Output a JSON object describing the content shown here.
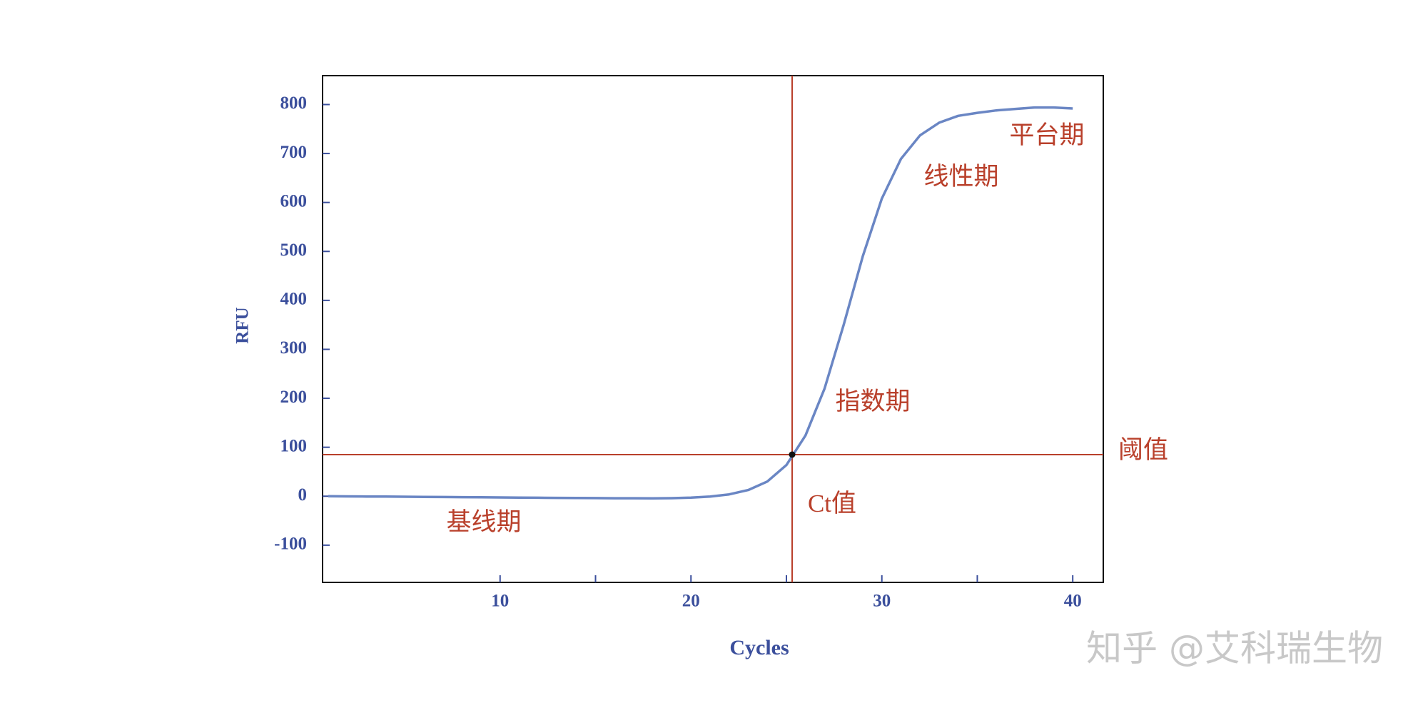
{
  "chart_data": {
    "type": "line",
    "x_label": "Cycles",
    "y_label": "RFU",
    "x": [
      1,
      2,
      3,
      4,
      5,
      6,
      7,
      8,
      9,
      10,
      11,
      12,
      13,
      14,
      15,
      16,
      17,
      18,
      19,
      20,
      21,
      22,
      23,
      24,
      25,
      26,
      27,
      28,
      29,
      30,
      31,
      32,
      33,
      34,
      35,
      36,
      37,
      38,
      39,
      40
    ],
    "series": [
      {
        "color": "#6a86c4",
        "values": [
          0,
          -0.3,
          -0.6,
          -0.8,
          -1.1,
          -1.4,
          -1.7,
          -2.0,
          -2.2,
          -2.5,
          -2.8,
          -3.1,
          -3.4,
          -3.6,
          -3.9,
          -4.1,
          -4.2,
          -4.3,
          -4.0,
          -2.9,
          -0.7,
          3.7,
          12.6,
          30,
          63.6,
          124,
          220,
          350,
          490,
          608,
          689,
          737,
          763,
          777,
          783,
          788,
          791,
          794,
          794,
          792
        ]
      }
    ],
    "xlim": [
      0.7,
      41.6
    ],
    "ylim": [
      -176,
      859
    ],
    "xticks": [
      10,
      20,
      30,
      40
    ],
    "x_minor_ticks": [
      15,
      25,
      35
    ],
    "yticks": [
      -100,
      0,
      100,
      200,
      300,
      400,
      500,
      600,
      700,
      800
    ],
    "threshold": 85,
    "ct": 25.3,
    "marker_color": "#b9402b",
    "annotations": [
      "平台期",
      "线性期",
      "指数期",
      "基线期",
      "Ct值",
      "阈值"
    ],
    "watermark": "知乎 @艾科瑞生物"
  }
}
